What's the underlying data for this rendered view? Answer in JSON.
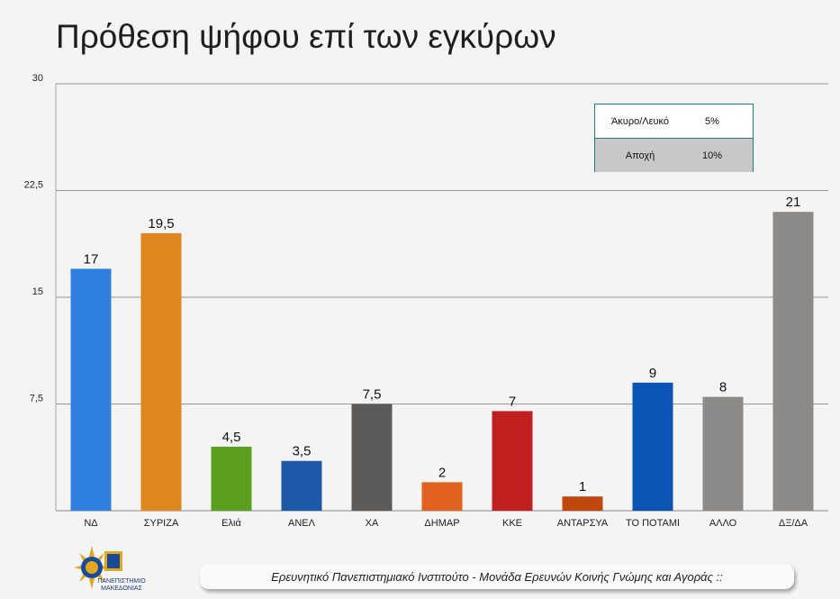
{
  "title": "Πρόθεση ψήφου επί των εγκύρων",
  "chart_data": {
    "type": "bar",
    "title": "Πρόθεση ψήφου επί των εγκύρων",
    "categories": [
      "ΝΔ",
      "ΣΥΡΙΖΑ",
      "Ελιά",
      "ΑΝΕΛ",
      "ΧΑ",
      "ΔΗΜΑΡ",
      "ΚΚΕ",
      "ΑΝΤΑΡΣΥΑ",
      "ΤΟ ΠΟΤΑΜΙ",
      "ΑΛΛΟ",
      "ΔΞ/ΔΑ"
    ],
    "values": [
      17,
      19.5,
      4.5,
      3.5,
      7.5,
      2,
      7,
      1,
      9,
      8,
      21
    ],
    "value_labels": [
      "17",
      "19,5",
      "4,5",
      "3,5",
      "7,5",
      "2",
      "7",
      "1",
      "9",
      "8",
      "21"
    ],
    "colors": [
      "#2f7fe0",
      "#e0861e",
      "#5aa01e",
      "#1e58a8",
      "#5d5b59",
      "#e0621e",
      "#c02020",
      "#c0480e",
      "#0c55b4",
      "#8c8a88",
      "#8c8a88"
    ],
    "ylim": [
      0,
      30
    ],
    "yticks": [
      7.5,
      15,
      22.5,
      30
    ],
    "ytick_labels": [
      "7,5",
      "15",
      "22,5",
      "30"
    ],
    "xlabel": "",
    "ylabel": "",
    "grid": true
  },
  "legend_table": {
    "rows": [
      {
        "label": "Άκυρο/Λευκό",
        "value": "5%"
      },
      {
        "label": "Αποχή",
        "value": "10%"
      }
    ]
  },
  "footer": {
    "text": "Ερευνητικό Πανεπιστημιακό Ινστιτούτο - Μονάδα Ερευνών Κοινής Γνώμης και Αγοράς ::"
  },
  "logo": {
    "text": "ΠΑΝΕΠΙΣΤΗΜΙΟ ΜΑΚΕΔΟΝΙΑΣ"
  }
}
